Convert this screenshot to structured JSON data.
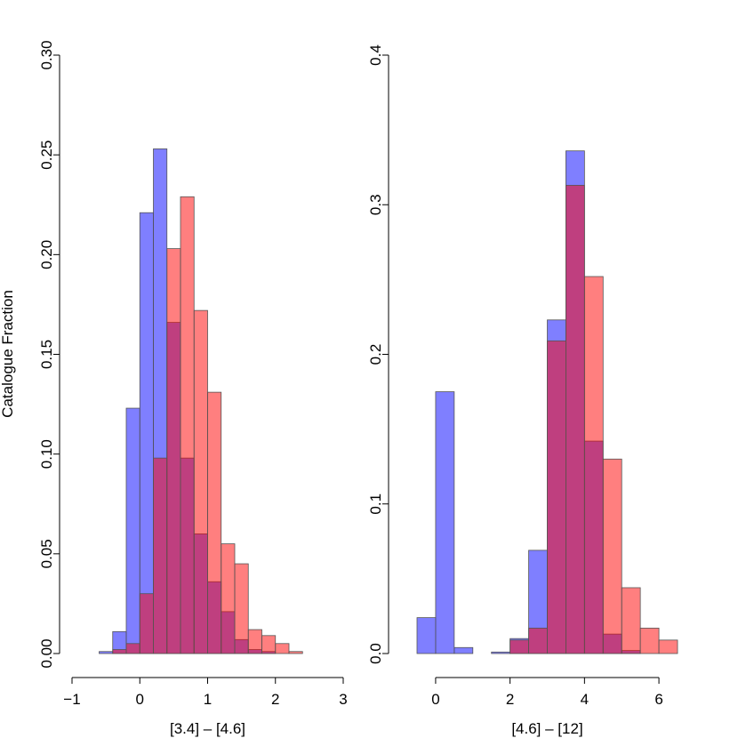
{
  "figure": {
    "ylabel": "Catalogue Fraction"
  },
  "chart_data": [
    {
      "type": "bar",
      "xlabel": "[3.4] – [4.6]",
      "ylabel": "Catalogue Fraction",
      "xlim": [
        -1,
        3
      ],
      "ylim": [
        0,
        0.3
      ],
      "xticks": [
        "−1",
        "0",
        "1",
        "2",
        "3"
      ],
      "yticks": [
        "0.00",
        "0.05",
        "0.10",
        "0.15",
        "0.20",
        "0.25",
        "0.30"
      ],
      "bin_width": 0.2,
      "colors": {
        "blue": "rgba(0,0,255,0.5)",
        "red": "rgba(255,0,0,0.5)",
        "border": "#555555"
      },
      "series": [
        {
          "color": "blue",
          "bins": [
            {
              "x0": -0.6,
              "x1": -0.4,
              "y": 0.001
            },
            {
              "x0": -0.4,
              "x1": -0.2,
              "y": 0.011
            },
            {
              "x0": -0.2,
              "x1": 0.0,
              "y": 0.123
            },
            {
              "x0": 0.0,
              "x1": 0.2,
              "y": 0.221
            },
            {
              "x0": 0.2,
              "x1": 0.4,
              "y": 0.253
            },
            {
              "x0": 0.4,
              "x1": 0.6,
              "y": 0.166
            },
            {
              "x0": 0.6,
              "x1": 0.8,
              "y": 0.098
            },
            {
              "x0": 0.8,
              "x1": 1.0,
              "y": 0.06
            },
            {
              "x0": 1.0,
              "x1": 1.2,
              "y": 0.036
            },
            {
              "x0": 1.2,
              "x1": 1.4,
              "y": 0.021
            },
            {
              "x0": 1.4,
              "x1": 1.6,
              "y": 0.007
            },
            {
              "x0": 1.6,
              "x1": 1.8,
              "y": 0.002
            },
            {
              "x0": 1.8,
              "x1": 2.0,
              "y": 0.001
            }
          ]
        },
        {
          "color": "red",
          "bins": [
            {
              "x0": -0.4,
              "x1": -0.2,
              "y": 0.002
            },
            {
              "x0": -0.2,
              "x1": 0.0,
              "y": 0.005
            },
            {
              "x0": 0.0,
              "x1": 0.2,
              "y": 0.03
            },
            {
              "x0": 0.2,
              "x1": 0.4,
              "y": 0.098
            },
            {
              "x0": 0.4,
              "x1": 0.6,
              "y": 0.203
            },
            {
              "x0": 0.6,
              "x1": 0.8,
              "y": 0.229
            },
            {
              "x0": 0.8,
              "x1": 1.0,
              "y": 0.172
            },
            {
              "x0": 1.0,
              "x1": 1.2,
              "y": 0.131
            },
            {
              "x0": 1.2,
              "x1": 1.4,
              "y": 0.055
            },
            {
              "x0": 1.4,
              "x1": 1.6,
              "y": 0.045
            },
            {
              "x0": 1.6,
              "x1": 1.8,
              "y": 0.012
            },
            {
              "x0": 1.8,
              "x1": 2.0,
              "y": 0.009
            },
            {
              "x0": 2.0,
              "x1": 2.2,
              "y": 0.005
            },
            {
              "x0": 2.2,
              "x1": 2.4,
              "y": 0.001
            }
          ]
        }
      ]
    },
    {
      "type": "bar",
      "xlabel": "[4.6] – [12]",
      "ylabel": "",
      "xlim": [
        -0.5,
        6.5
      ],
      "ylim": [
        0,
        0.4
      ],
      "xticks": [
        "0",
        "2",
        "4",
        "6"
      ],
      "yticks": [
        "0.0",
        "0.1",
        "0.2",
        "0.3",
        "0.4"
      ],
      "bin_width": 0.5,
      "colors": {
        "blue": "rgba(0,0,255,0.5)",
        "red": "rgba(255,0,0,0.5)",
        "border": "#555555"
      },
      "series": [
        {
          "color": "blue",
          "bins": [
            {
              "x0": -0.5,
              "x1": 0.0,
              "y": 0.024
            },
            {
              "x0": 0.0,
              "x1": 0.5,
              "y": 0.175
            },
            {
              "x0": 0.5,
              "x1": 1.0,
              "y": 0.004
            },
            {
              "x0": 1.0,
              "x1": 1.5,
              "y": 0.0
            },
            {
              "x0": 1.5,
              "x1": 2.0,
              "y": 0.001
            },
            {
              "x0": 2.0,
              "x1": 2.5,
              "y": 0.01
            },
            {
              "x0": 2.5,
              "x1": 3.0,
              "y": 0.069
            },
            {
              "x0": 3.0,
              "x1": 3.5,
              "y": 0.223
            },
            {
              "x0": 3.5,
              "x1": 4.0,
              "y": 0.336
            },
            {
              "x0": 4.0,
              "x1": 4.5,
              "y": 0.142
            },
            {
              "x0": 4.5,
              "x1": 5.0,
              "y": 0.013
            },
            {
              "x0": 5.0,
              "x1": 5.5,
              "y": 0.002
            }
          ]
        },
        {
          "color": "red",
          "bins": [
            {
              "x0": 2.0,
              "x1": 2.5,
              "y": 0.009
            },
            {
              "x0": 2.5,
              "x1": 3.0,
              "y": 0.017
            },
            {
              "x0": 3.0,
              "x1": 3.5,
              "y": 0.209
            },
            {
              "x0": 3.5,
              "x1": 4.0,
              "y": 0.313
            },
            {
              "x0": 4.0,
              "x1": 4.5,
              "y": 0.252
            },
            {
              "x0": 4.5,
              "x1": 5.0,
              "y": 0.13
            },
            {
              "x0": 5.0,
              "x1": 5.5,
              "y": 0.044
            },
            {
              "x0": 5.5,
              "x1": 6.0,
              "y": 0.017
            },
            {
              "x0": 6.0,
              "x1": 6.5,
              "y": 0.009
            }
          ]
        }
      ]
    }
  ]
}
